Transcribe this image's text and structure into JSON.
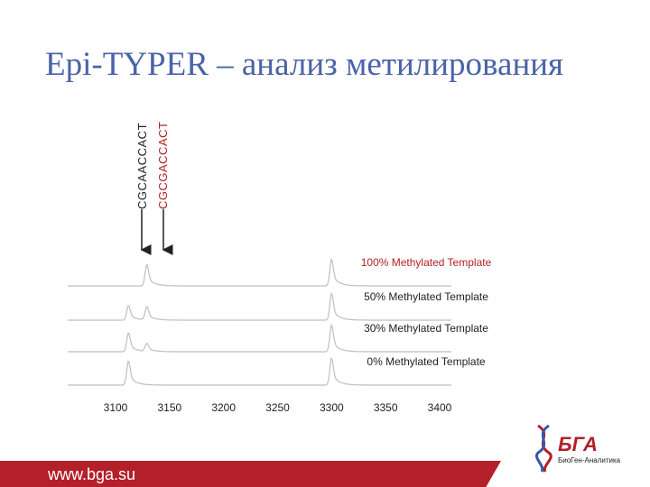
{
  "slide": {
    "title": "Epi-TYPER – анализ метилирования",
    "footer_url": "www.bga.su"
  },
  "sequences": [
    {
      "label": "CGCAACCACT",
      "color": "#222222",
      "mass": 3112
    },
    {
      "label": "CGCGACCACT",
      "color": "#b22222",
      "mass": 3129
    }
  ],
  "chart_data": {
    "type": "line",
    "title": "",
    "xlabel": "",
    "ylabel": "",
    "xlim": [
      3100,
      3400
    ],
    "x_ticks": [
      "3100",
      "3150",
      "3200",
      "3250",
      "3300",
      "3350",
      "3400"
    ],
    "series": [
      {
        "name": "100% Methylated Template",
        "label_color": "#b22222",
        "peaks": [
          {
            "x": 3129,
            "h": 0.8
          },
          {
            "x": 3300,
            "h": 1.0
          }
        ]
      },
      {
        "name": "50% Methylated Template",
        "label_color": "#222222",
        "peaks": [
          {
            "x": 3112,
            "h": 0.55
          },
          {
            "x": 3129,
            "h": 0.5
          },
          {
            "x": 3300,
            "h": 1.0
          }
        ]
      },
      {
        "name": "30% Methylated Template",
        "label_color": "#222222",
        "peaks": [
          {
            "x": 3112,
            "h": 0.7
          },
          {
            "x": 3129,
            "h": 0.3
          },
          {
            "x": 3300,
            "h": 1.0
          }
        ]
      },
      {
        "name": "0% Methylated Template",
        "label_color": "#222222",
        "peaks": [
          {
            "x": 3112,
            "h": 0.9
          },
          {
            "x": 3300,
            "h": 1.0
          }
        ]
      }
    ]
  },
  "logo": {
    "abbr": "БГА",
    "name": "БиоГен-Аналитика"
  }
}
